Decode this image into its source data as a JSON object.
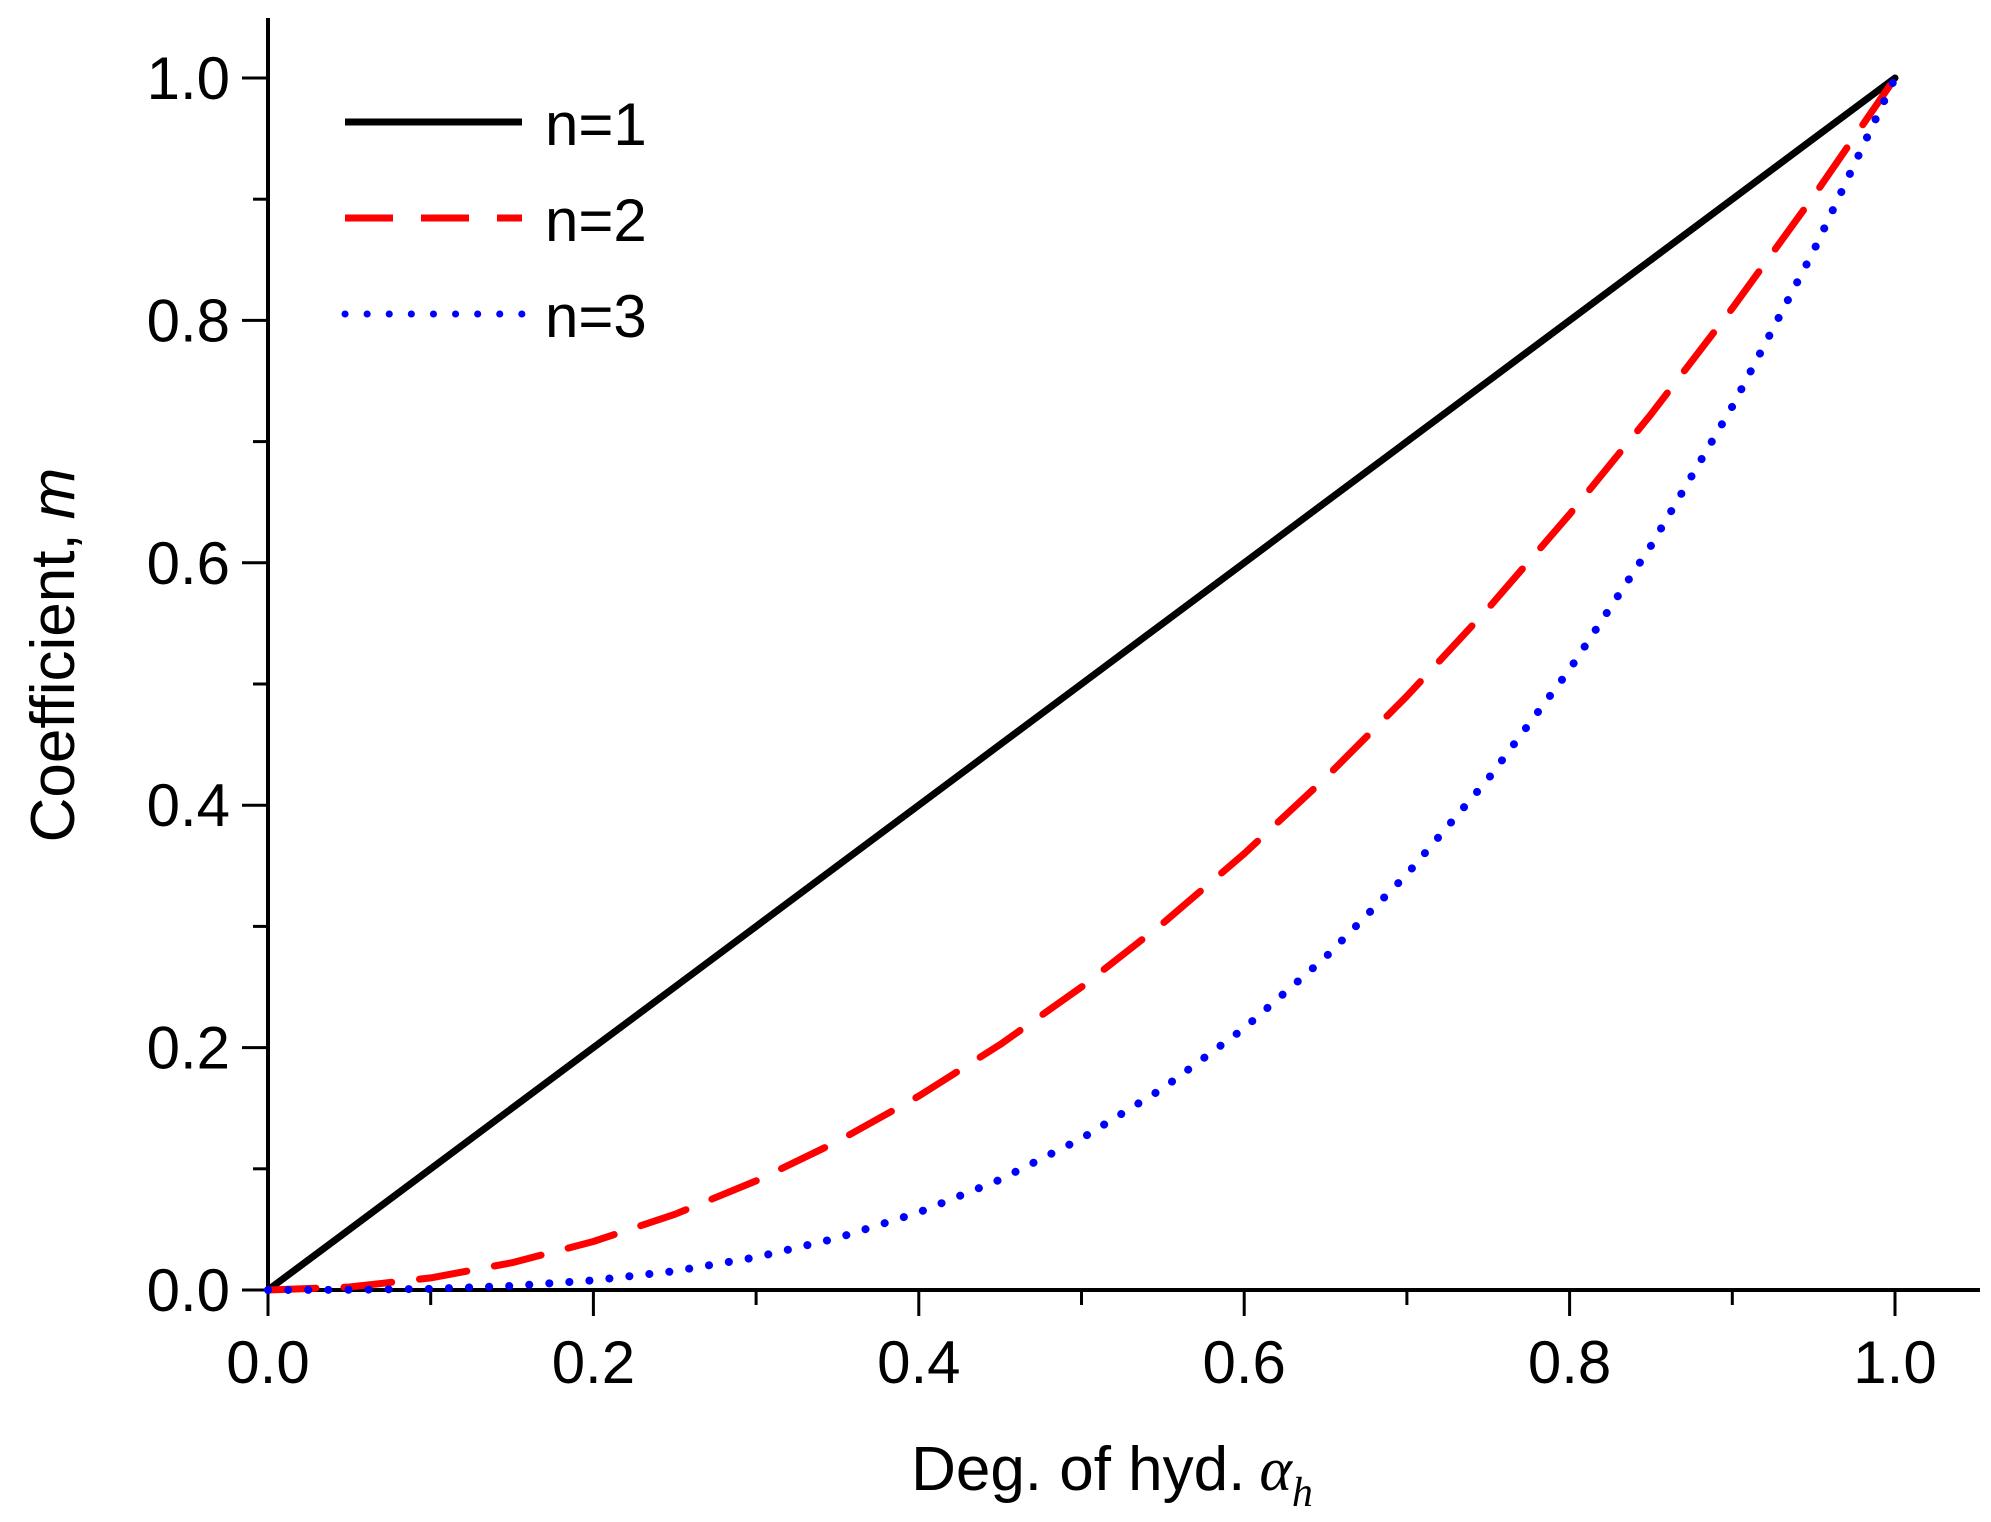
{
  "chart_data": {
    "type": "line",
    "title": "",
    "xlabel": "Deg. of hyd.",
    "xlabel_symbol": "α",
    "xlabel_subscript": "h",
    "ylabel": "Coefficient,",
    "ylabel_symbol": "m",
    "xlim": [
      0.0,
      1.0
    ],
    "ylim": [
      0.0,
      1.0
    ],
    "x_ticks": [
      "0.0",
      "0.2",
      "0.4",
      "0.6",
      "0.8",
      "1.0"
    ],
    "y_ticks": [
      "0.0",
      "0.2",
      "0.4",
      "0.6",
      "0.8",
      "1.0"
    ],
    "grid": false,
    "legend_position": "top-left",
    "x": [
      0.0,
      0.05,
      0.1,
      0.15,
      0.2,
      0.25,
      0.3,
      0.35,
      0.4,
      0.45,
      0.5,
      0.55,
      0.6,
      0.65,
      0.7,
      0.75,
      0.8,
      0.85,
      0.9,
      0.95,
      1.0
    ],
    "series": [
      {
        "name": "n=1",
        "color": "#000000",
        "style": "solid",
        "values": [
          0.0,
          0.05,
          0.1,
          0.15,
          0.2,
          0.25,
          0.3,
          0.35,
          0.4,
          0.45,
          0.5,
          0.55,
          0.6,
          0.65,
          0.7,
          0.75,
          0.8,
          0.85,
          0.9,
          0.95,
          1.0
        ]
      },
      {
        "name": "n=2",
        "color": "#ff0000",
        "style": "dashed",
        "values": [
          0.0,
          0.0025,
          0.01,
          0.0225,
          0.04,
          0.0625,
          0.09,
          0.1225,
          0.16,
          0.2025,
          0.25,
          0.3025,
          0.36,
          0.4225,
          0.49,
          0.5625,
          0.64,
          0.7225,
          0.81,
          0.9025,
          1.0
        ]
      },
      {
        "name": "n=3",
        "color": "#0000ff",
        "style": "dotted",
        "values": [
          0.0,
          0.000125,
          0.001,
          0.003375,
          0.008,
          0.015625,
          0.027,
          0.042875,
          0.064,
          0.091125,
          0.125,
          0.166375,
          0.216,
          0.274625,
          0.343,
          0.421875,
          0.512,
          0.614125,
          0.729,
          0.857375,
          1.0
        ]
      }
    ]
  }
}
